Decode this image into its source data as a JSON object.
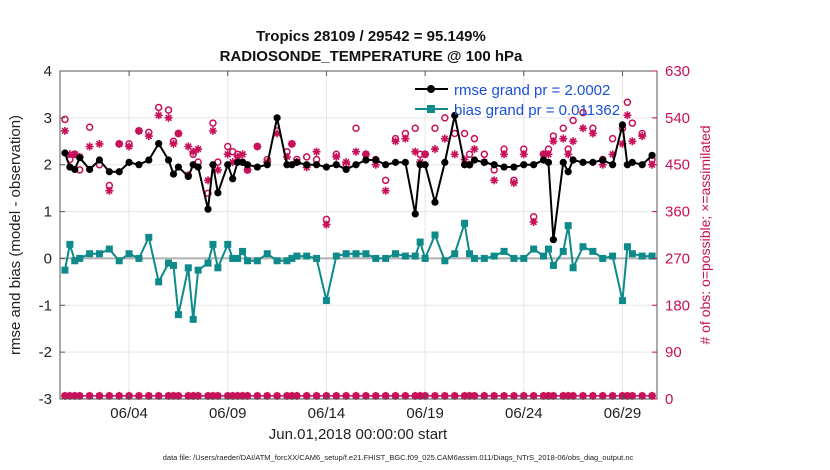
{
  "chart_data": {
    "type": "line",
    "title": "Tropics 28109 / 29542 = 95.149%",
    "subtitle": "RADIOSONDE_TEMPERATURE @ 100 hPa",
    "xlabel": "Jun.01,2018 00:00:00 start",
    "ylabel": "rmse and bias (model - observation)",
    "ylabel_right": "# of obs: o=possible; ×=assimilated",
    "footer": "data file: /Users/raeder/DAI/ATM_forcXX/CAM6_setup/f.e21.FHIST_BGC.f09_025.CAM6assim.011/Diags_NTrS_2018-06/obs_diag_output.nc",
    "xlim": [
      0.5,
      30.75
    ],
    "ylim": [
      -3,
      4
    ],
    "ylim_right": [
      0,
      630
    ],
    "xticks": [
      {
        "value": 4,
        "label": "06/04"
      },
      {
        "value": 9,
        "label": "06/09"
      },
      {
        "value": 14,
        "label": "06/14"
      },
      {
        "value": 19,
        "label": "06/19"
      },
      {
        "value": 24,
        "label": "06/24"
      },
      {
        "value": 29,
        "label": "06/29"
      }
    ],
    "yticks": [
      {
        "value": -3,
        "label": "-3"
      },
      {
        "value": -2,
        "label": "-2"
      },
      {
        "value": -1,
        "label": "-1"
      },
      {
        "value": 0,
        "label": "0"
      },
      {
        "value": 1,
        "label": "1"
      },
      {
        "value": 2,
        "label": "2"
      },
      {
        "value": 3,
        "label": "3"
      },
      {
        "value": 4,
        "label": "4"
      }
    ],
    "yticks_right": [
      {
        "value": 0,
        "label": "0"
      },
      {
        "value": 90,
        "label": "90"
      },
      {
        "value": 180,
        "label": "180"
      },
      {
        "value": 270,
        "label": "270"
      },
      {
        "value": 360,
        "label": "360"
      },
      {
        "value": 450,
        "label": "450"
      },
      {
        "value": 540,
        "label": "540"
      },
      {
        "value": 630,
        "label": "630"
      }
    ],
    "grid": true,
    "legend_position": "top-right",
    "colors": {
      "rmse": "#000000",
      "bias": "#0e8a8a",
      "obs": "#c8105a",
      "zero": "#b0b0b0",
      "legend_text": "#1a4fd8"
    },
    "x": [
      0.75,
      1.0,
      1.25,
      1.5,
      2.0,
      2.5,
      3.0,
      3.5,
      4.0,
      4.5,
      5.0,
      5.5,
      6.0,
      6.25,
      6.5,
      7.0,
      7.25,
      7.5,
      8.0,
      8.25,
      8.5,
      9.0,
      9.25,
      9.5,
      9.75,
      10.0,
      10.5,
      11.0,
      11.5,
      12.0,
      12.25,
      12.5,
      13.0,
      13.5,
      14.0,
      14.5,
      15.0,
      15.5,
      16.0,
      16.5,
      17.0,
      17.5,
      18.0,
      18.5,
      18.75,
      19.0,
      19.5,
      20.0,
      20.5,
      21.0,
      21.25,
      21.5,
      22.0,
      22.5,
      23.0,
      23.5,
      24.0,
      24.5,
      25.0,
      25.25,
      25.5,
      26.0,
      26.25,
      26.5,
      27.0,
      27.5,
      28.0,
      28.5,
      29.0,
      29.25,
      29.5,
      30.0,
      30.5
    ],
    "series": [
      {
        "name": "rmse grand pr = 2.0002",
        "values": [
          2.25,
          1.95,
          1.9,
          2.15,
          1.9,
          2.1,
          1.85,
          1.85,
          2.05,
          2.0,
          2.1,
          2.45,
          2.1,
          1.8,
          1.95,
          1.75,
          2.0,
          1.95,
          1.05,
          2.0,
          1.4,
          2.0,
          1.7,
          2.05,
          2.05,
          2.0,
          1.95,
          2.0,
          3.0,
          2.0,
          2.0,
          2.05,
          2.0,
          2.0,
          1.95,
          2.0,
          1.9,
          2.0,
          2.1,
          2.1,
          2.0,
          2.05,
          2.05,
          0.95,
          2.0,
          2.0,
          1.2,
          2.05,
          3.05,
          2.0,
          2.0,
          2.1,
          2.05,
          2.0,
          1.95,
          1.95,
          2.0,
          2.0,
          2.1,
          2.05,
          0.4,
          2.05,
          1.85,
          2.1,
          2.05,
          2.05,
          2.1,
          2.0,
          2.85,
          2.0,
          2.05,
          2.0,
          2.2
        ]
      },
      {
        "name": "bias grand pr = 0.011362",
        "values": [
          -0.25,
          0.3,
          -0.05,
          0.0,
          0.1,
          0.1,
          0.2,
          -0.05,
          0.1,
          0.0,
          0.45,
          -0.5,
          -0.1,
          -0.15,
          -1.2,
          -0.2,
          -1.3,
          -0.25,
          -0.1,
          0.3,
          -0.2,
          0.3,
          0.0,
          0.0,
          0.15,
          -0.05,
          -0.05,
          0.1,
          -0.05,
          -0.05,
          0.0,
          0.05,
          0.05,
          0.0,
          -0.9,
          0.05,
          0.1,
          0.1,
          0.1,
          0.0,
          0.0,
          0.1,
          0.05,
          0.05,
          0.35,
          0.0,
          0.5,
          -0.05,
          0.1,
          0.75,
          0.1,
          0.0,
          0.0,
          0.05,
          0.15,
          0.0,
          0.0,
          0.2,
          0.05,
          0.2,
          -0.15,
          0.15,
          0.7,
          -0.2,
          0.25,
          0.15,
          0.0,
          0.05,
          -0.9,
          0.25,
          0.1,
          0.05,
          0.05
        ]
      },
      {
        "name": "possible",
        "values": [
          6,
          6,
          6,
          6,
          6,
          6,
          6,
          6,
          6,
          6,
          6,
          6,
          6,
          6,
          6,
          6,
          6,
          6,
          6,
          6,
          6,
          6,
          6,
          6,
          6,
          6,
          6,
          6,
          6,
          6,
          6,
          6,
          6,
          6,
          6,
          6,
          6,
          6,
          6,
          6,
          6,
          6,
          6,
          6,
          6,
          6,
          6,
          6,
          6,
          6,
          6,
          6,
          6,
          6,
          6,
          6,
          6,
          6,
          6,
          6,
          6,
          6,
          6,
          6,
          6,
          6,
          6,
          6,
          6,
          6,
          6,
          6,
          6
        ]
      },
      {
        "name": "assimilated",
        "values": [
          6,
          6,
          6,
          6,
          6,
          6,
          6,
          6,
          6,
          6,
          6,
          6,
          6,
          6,
          6,
          6,
          6,
          6,
          6,
          6,
          6,
          6,
          6,
          6,
          6,
          6,
          6,
          6,
          6,
          6,
          6,
          6,
          6,
          6,
          6,
          6,
          6,
          6,
          6,
          6,
          6,
          6,
          6,
          6,
          6,
          6,
          6,
          6,
          6,
          6,
          6,
          6,
          6,
          6,
          6,
          6,
          6,
          6,
          6,
          6,
          6,
          6,
          6,
          6,
          6,
          6,
          6,
          6,
          6,
          6,
          6,
          6,
          6
        ]
      }
    ],
    "obs_counts": {
      "x": [
        0.75,
        1.0,
        1.25,
        1.5,
        2.0,
        2.5,
        3.0,
        3.5,
        4.0,
        4.5,
        5.0,
        5.5,
        6.0,
        6.25,
        6.5,
        7.0,
        7.25,
        7.5,
        8.0,
        8.25,
        8.5,
        9.0,
        9.25,
        9.5,
        9.75,
        10.0,
        10.5,
        11.0,
        11.5,
        12.0,
        12.25,
        12.5,
        13.0,
        13.5,
        14.0,
        14.5,
        15.0,
        15.5,
        16.0,
        16.5,
        17.0,
        17.5,
        18.0,
        18.5,
        18.75,
        19.0,
        19.5,
        20.0,
        20.5,
        21.0,
        21.25,
        21.5,
        22.0,
        22.5,
        23.0,
        23.5,
        24.0,
        24.5,
        25.0,
        25.25,
        25.5,
        26.0,
        26.25,
        26.5,
        27.0,
        27.5,
        28.0,
        28.5,
        29.0,
        29.25,
        29.5,
        30.0,
        30.5
      ],
      "possible": [
        537,
        460,
        470,
        440,
        522,
        450,
        410,
        490,
        490,
        515,
        512,
        560,
        555,
        495,
        510,
        430,
        470,
        455,
        395,
        530,
        455,
        485,
        475,
        470,
        455,
        440,
        485,
        460,
        515,
        475,
        490,
        460,
        465,
        460,
        345,
        470,
        450,
        520,
        470,
        460,
        420,
        500,
        510,
        520,
        470,
        470,
        520,
        540,
        510,
        510,
        470,
        500,
        470,
        440,
        480,
        420,
        480,
        350,
        470,
        480,
        505,
        520,
        480,
        535,
        550,
        520,
        460,
        500,
        520,
        570,
        530,
        510,
        460
      ],
      "assimilated": [
        515,
        470,
        470,
        465,
        485,
        490,
        400,
        490,
        485,
        515,
        505,
        545,
        540,
        490,
        510,
        485,
        475,
        480,
        420,
        515,
        440,
        470,
        455,
        465,
        470,
        440,
        485,
        455,
        510,
        465,
        490,
        455,
        445,
        475,
        335,
        465,
        455,
        475,
        470,
        450,
        400,
        495,
        500,
        475,
        455,
        470,
        480,
        500,
        470,
        460,
        450,
        480,
        455,
        420,
        470,
        415,
        470,
        340,
        470,
        470,
        495,
        500,
        470,
        495,
        520,
        510,
        450,
        470,
        490,
        545,
        495,
        505,
        450
      ]
    }
  }
}
